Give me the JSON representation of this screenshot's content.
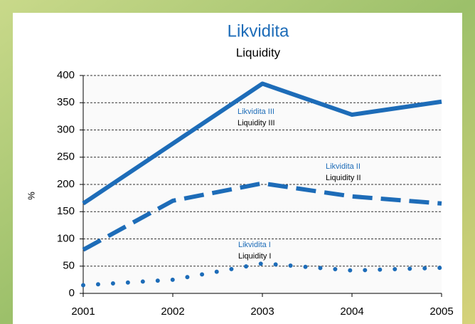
{
  "chart_data": {
    "type": "line",
    "title": "Likvidita",
    "subtitle": "Liquidity",
    "y_label": "%",
    "categories": [
      "2001",
      "2002",
      "2003",
      "2004",
      "2005"
    ],
    "series": [
      {
        "name": "Likvidita III",
        "name_en": "Liquidity III",
        "color": "#1d6cb8",
        "style": "solid",
        "values": [
          165,
          275,
          385,
          328,
          352
        ]
      },
      {
        "name": "Likvidita II",
        "name_en": "Liquidity II",
        "color": "#1d6cb8",
        "style": "dashed",
        "values": [
          80,
          170,
          202,
          178,
          165
        ]
      },
      {
        "name": "Likvidita I",
        "name_en": "Liquidity I",
        "color": "#1d6cb8",
        "style": "dotted",
        "values": [
          15,
          25,
          55,
          42,
          47
        ]
      }
    ],
    "ylim": [
      0,
      400
    ],
    "yticks": [
      0,
      50,
      100,
      150,
      200,
      250,
      300,
      350,
      400
    ],
    "grid": true
  }
}
